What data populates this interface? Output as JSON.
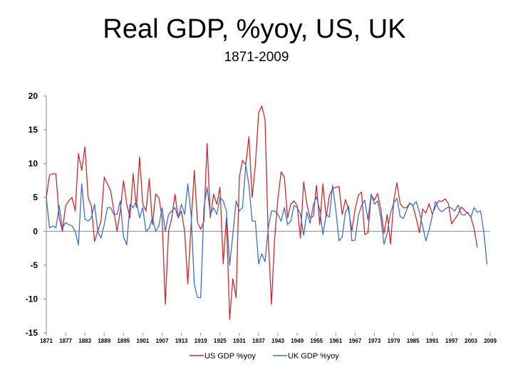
{
  "chart_data": {
    "type": "line",
    "title": "Real GDP, %yoy, US, UK",
    "subtitle": "1871-2009",
    "xlabel": "",
    "ylabel": "",
    "ylim": [
      -15,
      20
    ],
    "yticks": [
      "20",
      "15",
      "10",
      "5",
      "0",
      "-5",
      "-10",
      "-15"
    ],
    "x_start": 1871,
    "x_end": 2009,
    "xticks": [
      "1871",
      "1877",
      "1883",
      "1889",
      "1895",
      "1901",
      "1907",
      "1913",
      "1919",
      "1925",
      "1931",
      "1937",
      "1943",
      "1949",
      "1955",
      "1961",
      "1967",
      "1973",
      "1979",
      "1985",
      "1991",
      "1997",
      "2003",
      "2009"
    ],
    "legend_position": "bottom",
    "colors": {
      "us": "#cc2a2a",
      "uk": "#3a6fd0"
    },
    "series": [
      {
        "name": "US GDP %yoy",
        "values": [
          5,
          8.3,
          8.5,
          8.5,
          2,
          0,
          3.8,
          4.5,
          5,
          3,
          11.5,
          9,
          12.5,
          5,
          3.8,
          -1.5,
          0,
          1.5,
          8,
          7,
          6,
          3,
          0,
          3,
          7.5,
          4,
          2,
          8.5,
          3.5,
          11,
          4,
          3,
          7.8,
          1,
          5.5,
          5,
          2,
          -10.8,
          0,
          2,
          5.5,
          2,
          3,
          0,
          -7.8,
          1,
          9,
          1.3,
          0.3,
          1.5,
          13,
          2,
          5.5,
          4,
          6.5,
          -4.8,
          2,
          -13,
          -7,
          -9.8,
          8,
          10.5,
          9.8,
          14,
          5,
          9.8,
          17.5,
          18.5,
          16.5,
          -1,
          -10.8,
          -1,
          4.8,
          8.8,
          8,
          2,
          4,
          4.5,
          3.8,
          -1,
          7.3,
          4,
          2,
          2.2,
          6.8,
          1,
          7,
          2.1,
          5.3,
          6.3,
          6.5,
          6.6,
          2.5,
          4.7,
          3.1,
          0.1,
          3.3,
          5.3,
          5.8,
          -0.5,
          -0.2,
          5.4,
          4.6,
          5.6,
          3.2,
          -0.3,
          2.5,
          -1.9,
          4.5,
          7.2,
          4.1,
          3.5,
          3.5,
          4.2,
          3.7,
          1.9,
          -0.2,
          3.3,
          2.7,
          4.1,
          2.5,
          3.7,
          4.5,
          4.4,
          4.8,
          4.1,
          1.1,
          1.8,
          2.5,
          3.6,
          3.1,
          2.7,
          2.1,
          0.4,
          -2.4
        ]
      },
      {
        "name": "UK GDP %yoy",
        "values": [
          5,
          0.5,
          0.8,
          0.5,
          3.8,
          0.5,
          1.3,
          1,
          0.8,
          0,
          -2,
          7,
          1.8,
          1.5,
          2,
          4,
          0,
          -1,
          1,
          3.5,
          3.5,
          2.5,
          2.5,
          4.5,
          -0.8,
          -2,
          4,
          3.5,
          4.5,
          2,
          3.5,
          0,
          0.5,
          2,
          0,
          0.8,
          3.5,
          0,
          2.5,
          3,
          3.5,
          2,
          4,
          2.5,
          7,
          2.5,
          -7.8,
          -9.8,
          -9.8,
          3.5,
          6.5,
          2.5,
          3.5,
          2.5,
          5,
          4.5,
          3,
          -5,
          -0.5,
          4.5,
          3,
          3.5,
          9.8,
          6.8,
          1.5,
          1.5,
          -4.8,
          -3.3,
          -4.5,
          0.5,
          3,
          3,
          2.5,
          1.5,
          3.5,
          1,
          1.5,
          3.8,
          3.5,
          2.6,
          -0.6,
          2.8,
          1.2,
          3.9,
          5.1,
          3.2,
          -0.5,
          2.5,
          2.1,
          6.8,
          3.2,
          -1.4,
          -0.8,
          2.8,
          3.7,
          -1.4,
          -1.3,
          2.3,
          3.8,
          4.6,
          1.7,
          5.5,
          4,
          4.5,
          2,
          -1.9,
          -0.2,
          2.7,
          4.2,
          4.9,
          2.2,
          1.9,
          3.1,
          4.2,
          3.8,
          4.4,
          2.8,
          0.8,
          -1.4,
          0.2,
          2.3,
          4.4,
          3.3,
          2.9,
          3.3,
          3.6,
          3.4,
          3,
          3.9,
          2.5,
          2.4,
          2.8,
          2.1,
          3.5,
          2.8,
          3,
          -0.1,
          -4.9
        ]
      }
    ]
  }
}
